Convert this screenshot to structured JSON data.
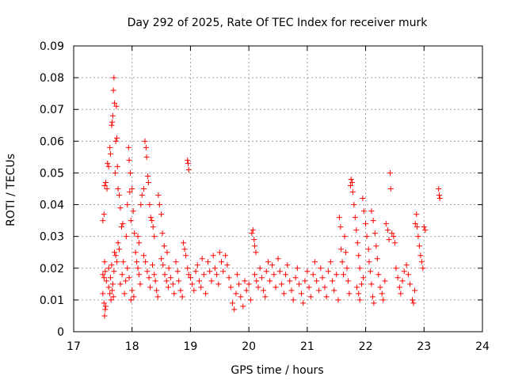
{
  "chart_data": {
    "type": "scatter",
    "title": "Day 292 of 2025, Rate Of TEC Index for receiver murk",
    "xlabel": "GPS time / hours",
    "ylabel": "ROTI / TECUs",
    "xlim": [
      17,
      24
    ],
    "ylim": [
      0,
      0.09
    ],
    "x_ticks": [
      "17",
      "18",
      "19",
      "20",
      "21",
      "22",
      "23",
      "24"
    ],
    "y_ticks": [
      "0",
      "0.01",
      "0.02",
      "0.03",
      "0.04",
      "0.05",
      "0.06",
      "0.07",
      "0.08",
      "0.09"
    ],
    "grid": true,
    "marker": "+",
    "color": "#ff0000",
    "points": [
      [
        17.5,
        0.035
      ],
      [
        17.52,
        0.037
      ],
      [
        17.53,
        0.046
      ],
      [
        17.55,
        0.047
      ],
      [
        17.57,
        0.045
      ],
      [
        17.5,
        0.018
      ],
      [
        17.52,
        0.017
      ],
      [
        17.54,
        0.019
      ],
      [
        17.56,
        0.016
      ],
      [
        17.53,
        0.022
      ],
      [
        17.5,
        0.012
      ],
      [
        17.52,
        0.009
      ],
      [
        17.54,
        0.007
      ],
      [
        17.53,
        0.005
      ],
      [
        17.55,
        0.008
      ],
      [
        17.58,
        0.053
      ],
      [
        17.6,
        0.052
      ],
      [
        17.62,
        0.058
      ],
      [
        17.63,
        0.056
      ],
      [
        17.65,
        0.065
      ],
      [
        17.66,
        0.066
      ],
      [
        17.67,
        0.068
      ],
      [
        17.68,
        0.076
      ],
      [
        17.69,
        0.08
      ],
      [
        17.7,
        0.072
      ],
      [
        17.72,
        0.06
      ],
      [
        17.73,
        0.071
      ],
      [
        17.74,
        0.061
      ],
      [
        17.71,
        0.05
      ],
      [
        17.75,
        0.052
      ],
      [
        17.6,
        0.014
      ],
      [
        17.62,
        0.012
      ],
      [
        17.64,
        0.01
      ],
      [
        17.66,
        0.013
      ],
      [
        17.68,
        0.011
      ],
      [
        17.7,
        0.025
      ],
      [
        17.72,
        0.024
      ],
      [
        17.74,
        0.022
      ],
      [
        17.76,
        0.028
      ],
      [
        17.78,
        0.026
      ],
      [
        17.6,
        0.02
      ],
      [
        17.63,
        0.017
      ],
      [
        17.65,
        0.021
      ],
      [
        17.67,
        0.015
      ],
      [
        17.69,
        0.019
      ],
      [
        17.76,
        0.045
      ],
      [
        17.78,
        0.043
      ],
      [
        17.8,
        0.039
      ],
      [
        17.82,
        0.033
      ],
      [
        17.84,
        0.034
      ],
      [
        17.8,
        0.015
      ],
      [
        17.83,
        0.018
      ],
      [
        17.85,
        0.022
      ],
      [
        17.87,
        0.012
      ],
      [
        17.89,
        0.016
      ],
      [
        17.9,
        0.03
      ],
      [
        17.92,
        0.04
      ],
      [
        17.94,
        0.058
      ],
      [
        17.95,
        0.054
      ],
      [
        17.97,
        0.05
      ],
      [
        17.96,
        0.044
      ],
      [
        17.98,
        0.035
      ],
      [
        18.0,
        0.045
      ],
      [
        18.02,
        0.038
      ],
      [
        18.04,
        0.031
      ],
      [
        17.92,
        0.02
      ],
      [
        17.95,
        0.017
      ],
      [
        17.98,
        0.01
      ],
      [
        18.0,
        0.013
      ],
      [
        18.03,
        0.011
      ],
      [
        18.06,
        0.025
      ],
      [
        18.08,
        0.022
      ],
      [
        18.1,
        0.02
      ],
      [
        18.12,
        0.018
      ],
      [
        18.14,
        0.015
      ],
      [
        18.1,
        0.03
      ],
      [
        18.12,
        0.028
      ],
      [
        18.15,
        0.04
      ],
      [
        18.17,
        0.043
      ],
      [
        18.2,
        0.045
      ],
      [
        18.22,
        0.06
      ],
      [
        18.24,
        0.058
      ],
      [
        18.25,
        0.055
      ],
      [
        18.27,
        0.049
      ],
      [
        18.28,
        0.047
      ],
      [
        18.3,
        0.04
      ],
      [
        18.32,
        0.036
      ],
      [
        18.34,
        0.035
      ],
      [
        18.36,
        0.033
      ],
      [
        18.38,
        0.03
      ],
      [
        18.2,
        0.024
      ],
      [
        18.23,
        0.022
      ],
      [
        18.26,
        0.019
      ],
      [
        18.29,
        0.017
      ],
      [
        18.31,
        0.014
      ],
      [
        18.35,
        0.021
      ],
      [
        18.38,
        0.018
      ],
      [
        18.4,
        0.016
      ],
      [
        18.42,
        0.013
      ],
      [
        18.44,
        0.011
      ],
      [
        18.45,
        0.043
      ],
      [
        18.47,
        0.04
      ],
      [
        18.5,
        0.037
      ],
      [
        18.52,
        0.031
      ],
      [
        18.55,
        0.027
      ],
      [
        18.5,
        0.023
      ],
      [
        18.53,
        0.021
      ],
      [
        18.56,
        0.018
      ],
      [
        18.59,
        0.016
      ],
      [
        18.62,
        0.014
      ],
      [
        18.6,
        0.025
      ],
      [
        18.63,
        0.02
      ],
      [
        18.66,
        0.017
      ],
      [
        18.7,
        0.015
      ],
      [
        18.72,
        0.012
      ],
      [
        18.75,
        0.022
      ],
      [
        18.78,
        0.019
      ],
      [
        18.8,
        0.016
      ],
      [
        18.83,
        0.013
      ],
      [
        18.86,
        0.011
      ],
      [
        18.88,
        0.028
      ],
      [
        18.9,
        0.026
      ],
      [
        18.92,
        0.024
      ],
      [
        18.95,
        0.02
      ],
      [
        18.97,
        0.018
      ],
      [
        18.95,
        0.054
      ],
      [
        18.96,
        0.053
      ],
      [
        18.97,
        0.051
      ],
      [
        19.0,
        0.017
      ],
      [
        19.03,
        0.015
      ],
      [
        19.06,
        0.013
      ],
      [
        19.09,
        0.019
      ],
      [
        19.12,
        0.021
      ],
      [
        19.15,
        0.016
      ],
      [
        19.18,
        0.014
      ],
      [
        19.2,
        0.023
      ],
      [
        19.23,
        0.018
      ],
      [
        19.26,
        0.012
      ],
      [
        19.3,
        0.022
      ],
      [
        19.33,
        0.019
      ],
      [
        19.36,
        0.016
      ],
      [
        19.39,
        0.024
      ],
      [
        19.42,
        0.02
      ],
      [
        19.45,
        0.018
      ],
      [
        19.48,
        0.015
      ],
      [
        19.5,
        0.025
      ],
      [
        19.53,
        0.022
      ],
      [
        19.56,
        0.019
      ],
      [
        19.6,
        0.024
      ],
      [
        19.63,
        0.021
      ],
      [
        19.66,
        0.017
      ],
      [
        19.69,
        0.014
      ],
      [
        19.72,
        0.009
      ],
      [
        19.75,
        0.007
      ],
      [
        19.78,
        0.012
      ],
      [
        19.8,
        0.018
      ],
      [
        19.83,
        0.015
      ],
      [
        19.86,
        0.011
      ],
      [
        19.9,
        0.008
      ],
      [
        19.93,
        0.016
      ],
      [
        19.96,
        0.013
      ],
      [
        20.0,
        0.015
      ],
      [
        20.03,
        0.01
      ],
      [
        20.05,
        0.031
      ],
      [
        20.07,
        0.032
      ],
      [
        20.09,
        0.029
      ],
      [
        20.1,
        0.027
      ],
      [
        20.12,
        0.025
      ],
      [
        20.1,
        0.018
      ],
      [
        20.13,
        0.016
      ],
      [
        20.16,
        0.014
      ],
      [
        20.19,
        0.02
      ],
      [
        20.22,
        0.017
      ],
      [
        20.25,
        0.013
      ],
      [
        20.28,
        0.011
      ],
      [
        20.3,
        0.019
      ],
      [
        20.33,
        0.022
      ],
      [
        20.36,
        0.016
      ],
      [
        20.4,
        0.021
      ],
      [
        20.43,
        0.018
      ],
      [
        20.46,
        0.014
      ],
      [
        20.5,
        0.023
      ],
      [
        20.53,
        0.019
      ],
      [
        20.56,
        0.015
      ],
      [
        20.6,
        0.012
      ],
      [
        20.63,
        0.018
      ],
      [
        20.66,
        0.021
      ],
      [
        20.7,
        0.016
      ],
      [
        20.73,
        0.013
      ],
      [
        20.76,
        0.01
      ],
      [
        20.8,
        0.017
      ],
      [
        20.83,
        0.02
      ],
      [
        20.86,
        0.015
      ],
      [
        20.9,
        0.012
      ],
      [
        20.93,
        0.009
      ],
      [
        20.96,
        0.016
      ],
      [
        21.0,
        0.019
      ],
      [
        21.03,
        0.014
      ],
      [
        21.06,
        0.011
      ],
      [
        21.1,
        0.018
      ],
      [
        21.13,
        0.022
      ],
      [
        21.16,
        0.016
      ],
      [
        21.2,
        0.013
      ],
      [
        21.23,
        0.02
      ],
      [
        21.26,
        0.017
      ],
      [
        21.3,
        0.014
      ],
      [
        21.33,
        0.011
      ],
      [
        21.36,
        0.019
      ],
      [
        21.4,
        0.022
      ],
      [
        21.43,
        0.016
      ],
      [
        21.46,
        0.013
      ],
      [
        21.5,
        0.018
      ],
      [
        21.53,
        0.01
      ],
      [
        21.55,
        0.036
      ],
      [
        21.57,
        0.033
      ],
      [
        21.58,
        0.026
      ],
      [
        21.6,
        0.022
      ],
      [
        21.62,
        0.018
      ],
      [
        21.64,
        0.03
      ],
      [
        21.66,
        0.025
      ],
      [
        21.68,
        0.02
      ],
      [
        21.7,
        0.016
      ],
      [
        21.72,
        0.012
      ],
      [
        21.74,
        0.046
      ],
      [
        21.75,
        0.048
      ],
      [
        21.77,
        0.047
      ],
      [
        21.78,
        0.044
      ],
      [
        21.8,
        0.04
      ],
      [
        21.82,
        0.036
      ],
      [
        21.84,
        0.032
      ],
      [
        21.86,
        0.028
      ],
      [
        21.88,
        0.024
      ],
      [
        21.9,
        0.02
      ],
      [
        21.85,
        0.014
      ],
      [
        21.88,
        0.012
      ],
      [
        21.9,
        0.01
      ],
      [
        21.93,
        0.015
      ],
      [
        21.96,
        0.017
      ],
      [
        21.95,
        0.042
      ],
      [
        21.97,
        0.038
      ],
      [
        22.0,
        0.034
      ],
      [
        22.02,
        0.03
      ],
      [
        22.05,
        0.026
      ],
      [
        22.06,
        0.022
      ],
      [
        22.08,
        0.019
      ],
      [
        22.1,
        0.015
      ],
      [
        22.12,
        0.011
      ],
      [
        22.14,
        0.009
      ],
      [
        22.1,
        0.038
      ],
      [
        22.13,
        0.035
      ],
      [
        22.16,
        0.031
      ],
      [
        22.18,
        0.027
      ],
      [
        22.2,
        0.023
      ],
      [
        22.22,
        0.018
      ],
      [
        22.25,
        0.014
      ],
      [
        22.28,
        0.012
      ],
      [
        22.3,
        0.01
      ],
      [
        22.33,
        0.016
      ],
      [
        22.35,
        0.034
      ],
      [
        22.38,
        0.032
      ],
      [
        22.4,
        0.029
      ],
      [
        22.42,
        0.05
      ],
      [
        22.43,
        0.045
      ],
      [
        22.45,
        0.031
      ],
      [
        22.48,
        0.03
      ],
      [
        22.5,
        0.028
      ],
      [
        22.52,
        0.02
      ],
      [
        22.55,
        0.017
      ],
      [
        22.58,
        0.014
      ],
      [
        22.6,
        0.012
      ],
      [
        22.63,
        0.016
      ],
      [
        22.66,
        0.019
      ],
      [
        22.7,
        0.021
      ],
      [
        22.73,
        0.018
      ],
      [
        22.76,
        0.015
      ],
      [
        22.8,
        0.01
      ],
      [
        22.82,
        0.009
      ],
      [
        22.84,
        0.013
      ],
      [
        22.85,
        0.034
      ],
      [
        22.87,
        0.037
      ],
      [
        22.88,
        0.033
      ],
      [
        22.9,
        0.03
      ],
      [
        22.92,
        0.027
      ],
      [
        22.94,
        0.024
      ],
      [
        22.96,
        0.022
      ],
      [
        22.98,
        0.02
      ],
      [
        23.0,
        0.033
      ],
      [
        23.02,
        0.032
      ],
      [
        23.25,
        0.045
      ],
      [
        23.26,
        0.043
      ],
      [
        23.27,
        0.042
      ]
    ]
  }
}
